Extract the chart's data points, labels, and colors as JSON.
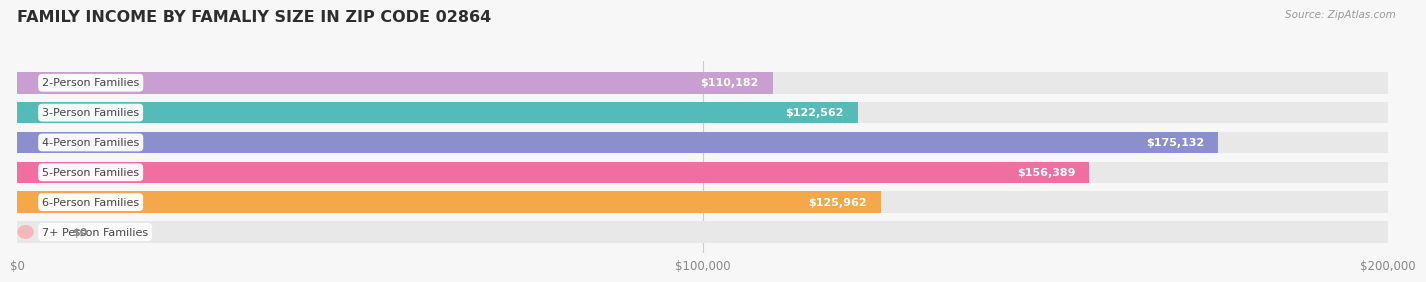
{
  "title": "FAMILY INCOME BY FAMALIY SIZE IN ZIP CODE 02864",
  "source": "Source: ZipAtlas.com",
  "categories": [
    "2-Person Families",
    "3-Person Families",
    "4-Person Families",
    "5-Person Families",
    "6-Person Families",
    "7+ Person Families"
  ],
  "values": [
    110182,
    122562,
    175132,
    156389,
    125962,
    0
  ],
  "bar_colors": [
    "#c89fd0",
    "#54bbb6",
    "#8b8fce",
    "#f06fa0",
    "#f5a84a",
    "#f5b8b8"
  ],
  "value_labels": [
    "$110,182",
    "$122,562",
    "$175,132",
    "$156,389",
    "$125,962",
    "$0"
  ],
  "xlim": [
    0,
    200000
  ],
  "xticks": [
    0,
    100000,
    200000
  ],
  "xtick_labels": [
    "$0",
    "$100,000",
    "$200,000"
  ],
  "background_color": "#f7f7f7",
  "bar_bg_color": "#e8e8e8",
  "title_color": "#2e2e2e",
  "source_color": "#999999",
  "bar_height": 0.72,
  "n_bars": 6
}
